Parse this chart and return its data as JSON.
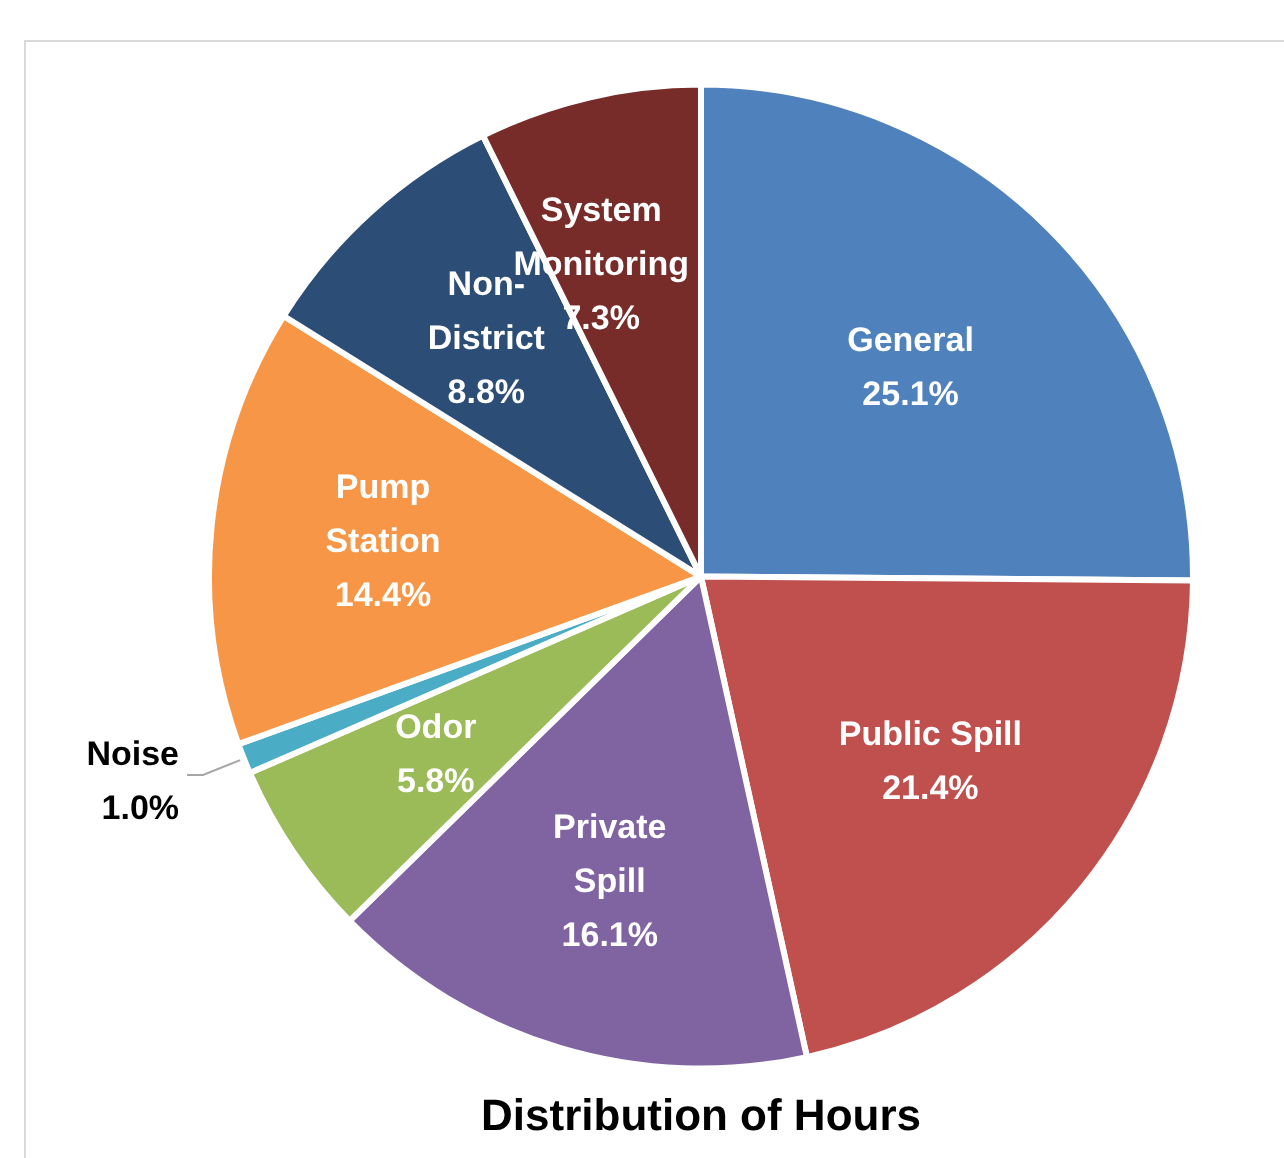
{
  "chart_data": {
    "type": "pie",
    "title": "Distribution of Hours",
    "categories": [
      "General",
      "Public Spill",
      "Private Spill",
      "Odor",
      "Noise",
      "Pump Station",
      "Non-District",
      "System Monitoring"
    ],
    "values": [
      25.1,
      21.4,
      16.1,
      5.8,
      1.0,
      14.4,
      8.8,
      7.3
    ],
    "colors": [
      "#4f81bd",
      "#c0504d",
      "#8064a2",
      "#9bbb59",
      "#4bacc6",
      "#f79646",
      "#2c4d75",
      "#772c2a"
    ],
    "value_labels": [
      "25.1%",
      "21.4%",
      "16.1%",
      "5.8%",
      "1.0%",
      "14.4%",
      "8.8%",
      "7.3%"
    ],
    "legend": false
  }
}
